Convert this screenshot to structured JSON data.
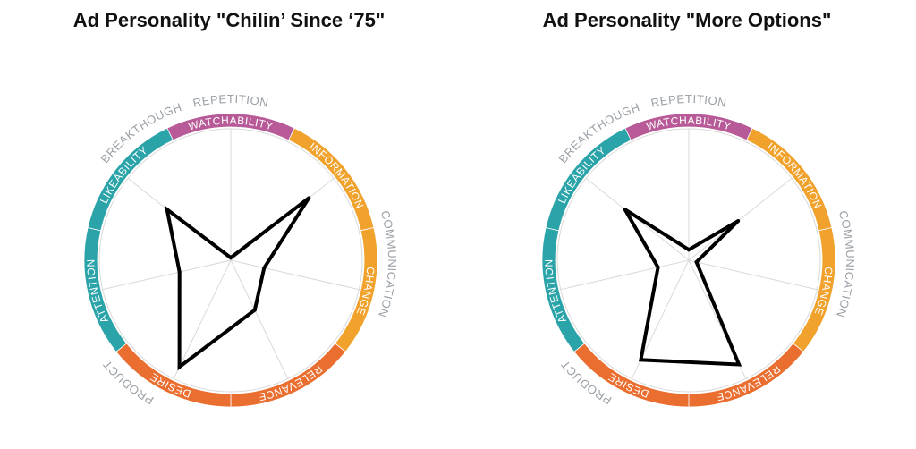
{
  "colors": {
    "watchability": "#b75a97",
    "communication": "#f0a22d",
    "product": "#ea6e2f",
    "breakthrough": "#2aa3a9",
    "grid": "#d9d9d9",
    "group_label": "#9aa0a6",
    "line": "#000000"
  },
  "chart_data": [
    {
      "type": "radar",
      "title": "Ad Personality \"Chilin’ Since ‘75\"",
      "axes": [
        "WATCHABILITY",
        "INFORMATION",
        "CHANGE",
        "RELEVANCE",
        "DESIRE",
        "ATTENTION",
        "LIKEABILITY"
      ],
      "segment_labels": [
        "WATCHABILITY",
        "INFORMATION",
        "CHANGE",
        "RELEVANCE",
        "DESIRE",
        "ATTENTION",
        "LIKEABILITY"
      ],
      "groups": [
        "REPETITION",
        "COMMUNICATION",
        "PRODUCT",
        "BREAKTHOUGH"
      ],
      "scale": [
        0,
        5
      ],
      "values": [
        0.1,
        3.8,
        1.3,
        2.1,
        4.5,
        2.0,
        3.1
      ],
      "grid": true
    },
    {
      "type": "radar",
      "title": "Ad Personality \"More Options\"",
      "axes": [
        "WATCHABILITY",
        "INFORMATION",
        "CHANGE",
        "RELEVANCE",
        "DESIRE",
        "ATTENTION",
        "LIKEABILITY"
      ],
      "segment_labels": [
        "WATCHABILITY",
        "INFORMATION",
        "CHANGE",
        "RELEVANCE",
        "DESIRE",
        "ATTENTION",
        "LIKEABILITY"
      ],
      "groups": [
        "REPETITION",
        "COMMUNICATION",
        "PRODUCT",
        "BREAKTHOUGH"
      ],
      "scale": [
        0,
        5
      ],
      "values": [
        0.4,
        2.4,
        0.3,
        4.4,
        4.2,
        1.2,
        3.1
      ],
      "grid": true
    }
  ]
}
